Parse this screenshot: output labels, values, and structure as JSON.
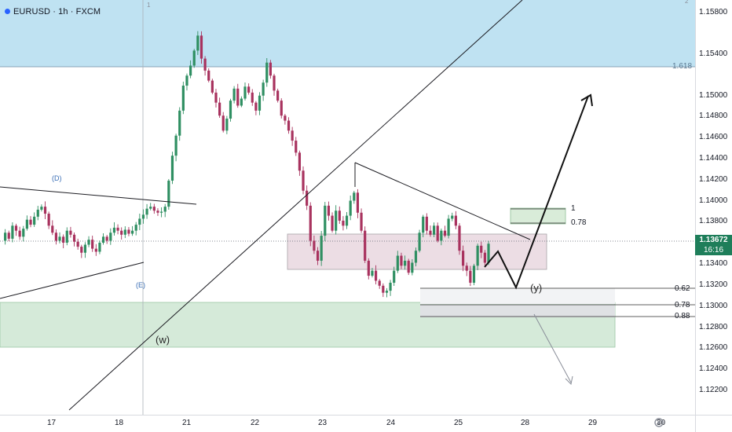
{
  "header": {
    "symbol": "EURUSD · 1h · FXCM"
  },
  "price_axis": {
    "ticks": [
      "1.15800",
      "1.15400",
      "1.15000",
      "1.14800",
      "1.14600",
      "1.14400",
      "1.14200",
      "1.14000",
      "1.13800",
      "1.13400",
      "1.13200",
      "1.13000",
      "1.12800",
      "1.12600",
      "1.12400",
      "1.12200"
    ],
    "current_price": "1.13672",
    "countdown": "16:16",
    "current_price_color": "#1e7e5a"
  },
  "time_axis": {
    "ticks": [
      "17",
      "18",
      "21",
      "22",
      "23",
      "24",
      "25",
      "28",
      "29",
      "30"
    ]
  },
  "annotations": {
    "fib_1618": "1.618",
    "fib_1": "1",
    "fib_078_upper": "0.78",
    "fib_062": "0.62",
    "fib_078_lower": "0.78",
    "fib_088": "0.88",
    "wave_d": "(D)",
    "wave_e": "(E)",
    "wave_w": "(w)",
    "wave_y": "(y)",
    "pane_1": "1",
    "pane_2": "2"
  },
  "colors": {
    "bull": "#2f8f62",
    "bear": "#a8325e",
    "sky_zone": "#bfe2f2",
    "green_zone": "#d5ead9",
    "pink_zone": "#ecdde4",
    "line": "#1c1c22",
    "wave_label": "#3b6fb6"
  },
  "chart_data": {
    "type": "candlestick",
    "symbol": "EURUSD",
    "timeframe": "1h",
    "y_range": [
      1.1211,
      1.1598
    ],
    "x_ticks": [
      "17",
      "18",
      "21",
      "22",
      "23",
      "24",
      "25",
      "28",
      "29",
      "30"
    ],
    "last_price": 1.13672,
    "fib_levels": [
      {
        "label": "1.618",
        "value": 1.153
      },
      {
        "label": "1",
        "value": 1.1397
      },
      {
        "label": "0.78",
        "value": 1.1384
      },
      {
        "label": "0.62",
        "value": 1.1321
      },
      {
        "label": "0.78",
        "value": 1.1306
      },
      {
        "label": "0.88",
        "value": 1.1295
      }
    ],
    "zones": [
      {
        "name": "blue",
        "from": 1.153,
        "to": 1.1598
      },
      {
        "name": "green",
        "from": 1.127,
        "to": 1.1312
      },
      {
        "name": "pink",
        "from": 1.1341,
        "to": 1.1378
      }
    ],
    "wave_labels": [
      "(D)",
      "(E)",
      "(w)",
      "(y)"
    ],
    "price_path": [
      1.137,
      1.1378,
      1.1372,
      1.1385,
      1.138,
      1.1374,
      1.1382,
      1.1391,
      1.1386,
      1.1394,
      1.1401,
      1.1404,
      1.1397,
      1.1385,
      1.1378,
      1.137,
      1.1374,
      1.1368,
      1.138,
      1.1376,
      1.1369,
      1.1364,
      1.1358,
      1.1366,
      1.1371,
      1.1362,
      1.1359,
      1.1368,
      1.1374,
      1.137,
      1.1378,
      1.1383,
      1.138,
      1.1376,
      1.1381,
      1.1377,
      1.138,
      1.1386,
      1.1392,
      1.1396,
      1.1402,
      1.1404,
      1.14,
      1.1398,
      1.1399,
      1.1404,
      1.143,
      1.1455,
      1.1475,
      1.15,
      1.1525,
      1.1535,
      1.1545,
      1.156,
      1.1575,
      1.1552,
      1.154,
      1.153,
      1.1518,
      1.1508,
      1.1495,
      1.148,
      1.1492,
      1.151,
      1.1522,
      1.1505,
      1.1512,
      1.1524,
      1.1518,
      1.1508,
      1.15,
      1.1515,
      1.1528,
      1.1548,
      1.1535,
      1.152,
      1.151,
      1.1495,
      1.149,
      1.148,
      1.147,
      1.1458,
      1.144,
      1.142,
      1.1405,
      1.137,
      1.136,
      1.135,
      1.1375,
      1.1405,
      1.1395,
      1.138,
      1.14,
      1.139,
      1.1385,
      1.1395,
      1.141,
      1.1418,
      1.1398,
      1.138,
      1.135,
      1.1335,
      1.134,
      1.133,
      1.1325,
      1.1318,
      1.132,
      1.1328,
      1.134,
      1.1355,
      1.1345,
      1.135,
      1.1338,
      1.1348,
      1.136,
      1.1378,
      1.1394,
      1.138,
      1.1376,
      1.1385,
      1.137,
      1.138,
      1.1375,
      1.1392,
      1.1395,
      1.1385,
      1.136,
      1.1345,
      1.134,
      1.1328,
      1.1345,
      1.1365,
      1.1358,
      1.1348,
      1.1367
    ],
    "projection_path": [
      [
        1.1346,
        "now"
      ],
      [
        1.1367,
        "+3h"
      ],
      [
        1.1324,
        "+6h"
      ],
      [
        1.138,
        "+9h"
      ],
      [
        1.1502,
        "+15h"
      ]
    ]
  }
}
